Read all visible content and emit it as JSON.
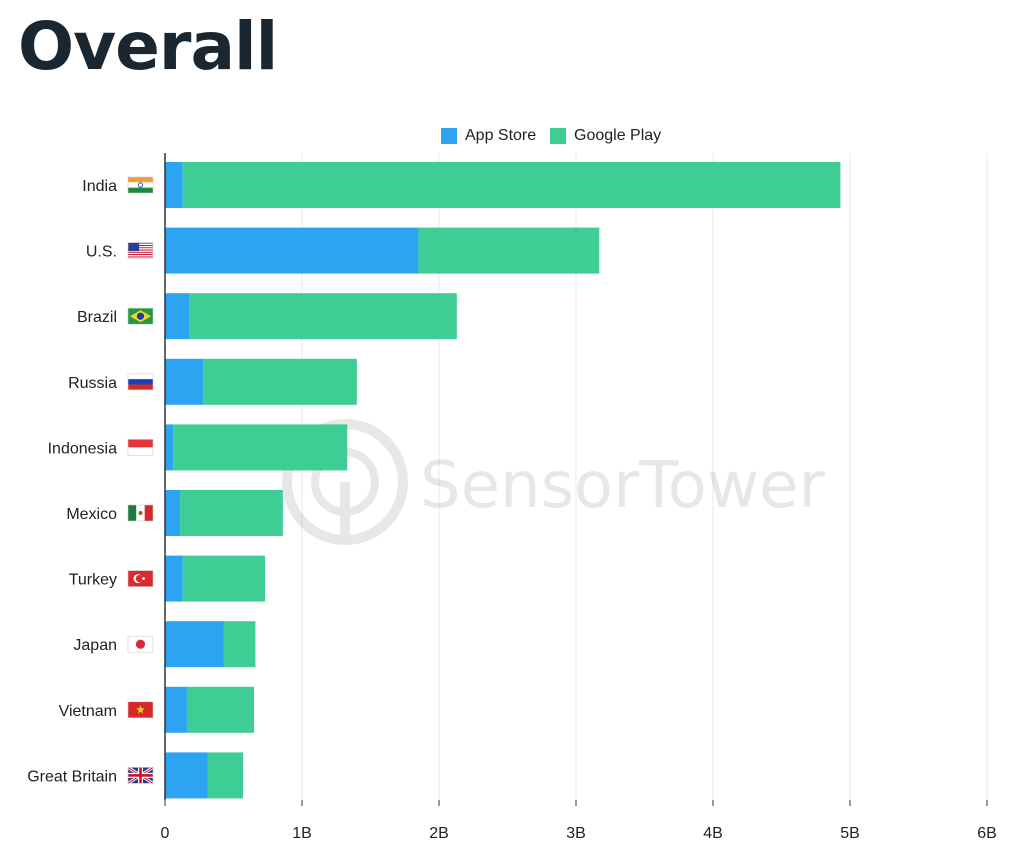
{
  "title": "Overall",
  "colors": {
    "app_store": "#2ea3f2",
    "google_play": "#3ecd95",
    "grid": "#e9e9e9",
    "axis": "#333333"
  },
  "watermark": "SensorTower",
  "chart_data": {
    "type": "bar",
    "orientation": "horizontal",
    "stacked": true,
    "categories": [
      "India",
      "U.S.",
      "Brazil",
      "Russia",
      "Indonesia",
      "Mexico",
      "Turkey",
      "Japan",
      "Vietnam",
      "Great Britain"
    ],
    "category_icons": [
      "india-flag-icon",
      "us-flag-icon",
      "brazil-flag-icon",
      "russia-flag-icon",
      "indonesia-flag-icon",
      "mexico-flag-icon",
      "turkey-flag-icon",
      "japan-flag-icon",
      "vietnam-flag-icon",
      "great-britain-flag-icon"
    ],
    "series": [
      {
        "name": "App Store",
        "values": [
          0.13,
          1.85,
          0.18,
          0.28,
          0.06,
          0.11,
          0.13,
          0.43,
          0.16,
          0.31
        ]
      },
      {
        "name": "Google Play",
        "values": [
          4.8,
          1.32,
          1.95,
          1.12,
          1.27,
          0.75,
          0.6,
          0.23,
          0.49,
          0.26
        ]
      }
    ],
    "xlim": [
      0,
      6
    ],
    "xticks": [
      0,
      1,
      2,
      3,
      4,
      5,
      6
    ],
    "xtick_labels": [
      "0",
      "1B",
      "2B",
      "3B",
      "4B",
      "5B",
      "6B"
    ],
    "xlabel": "",
    "ylabel": "",
    "grid": true,
    "legend_position": "top-center"
  }
}
